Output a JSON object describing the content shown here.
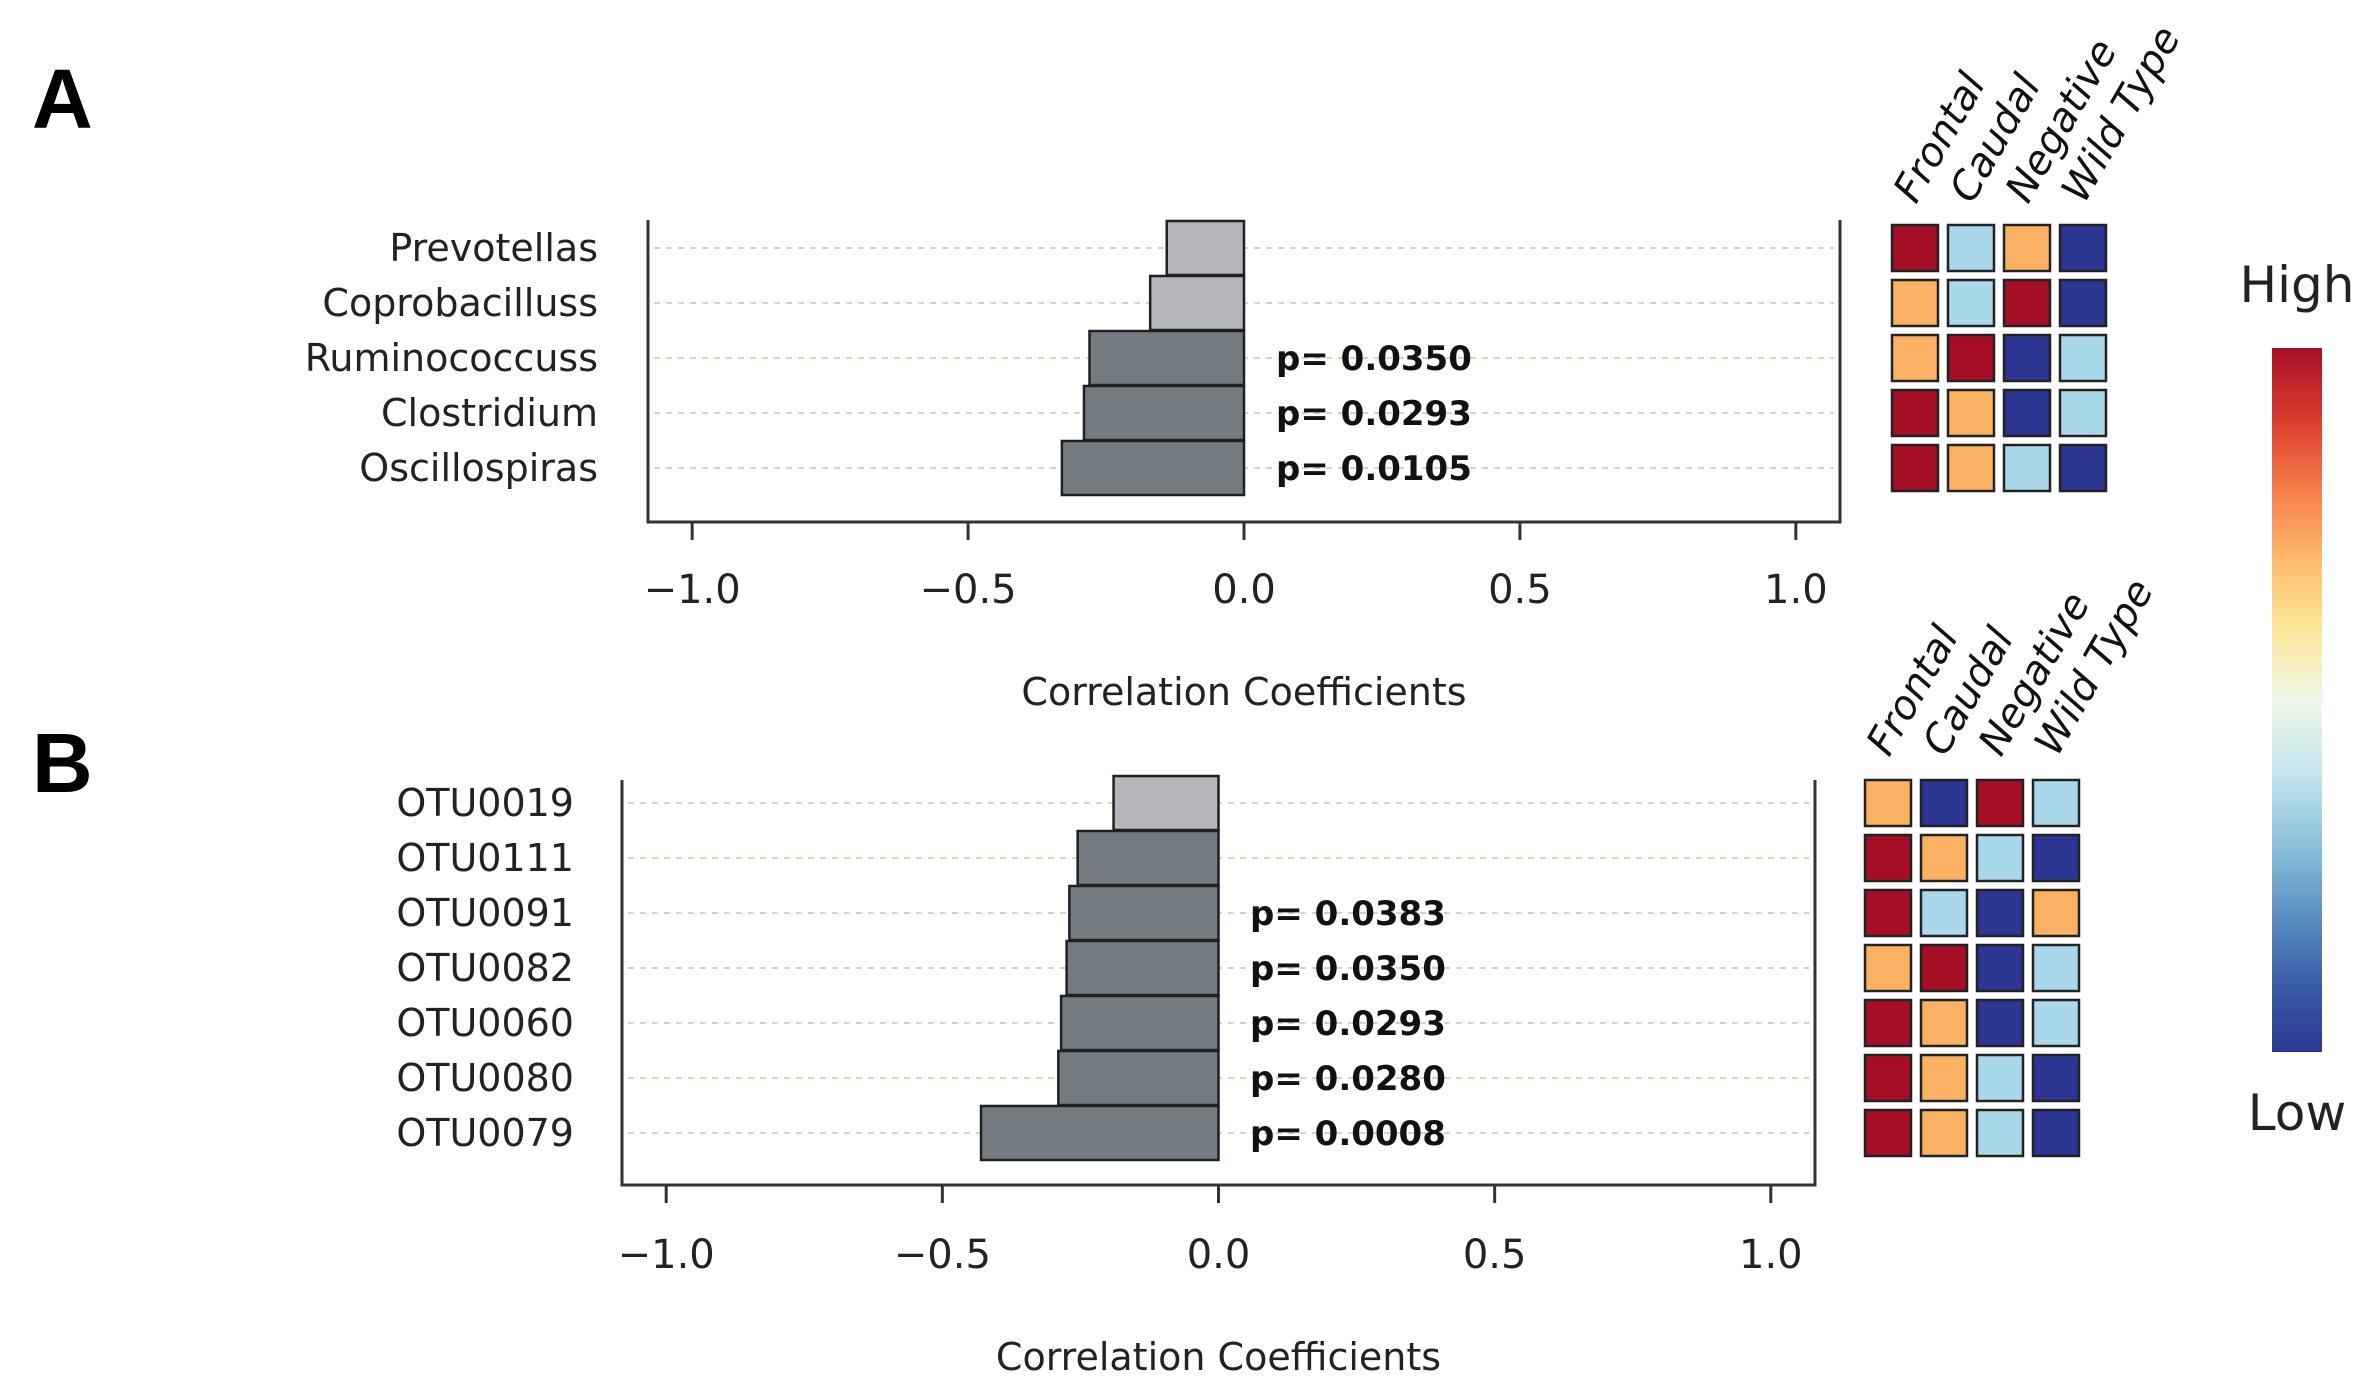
{
  "legend": {
    "high_label": "High",
    "low_label": "Low",
    "gradient": [
      "#2c3691",
      "#3c5ea8",
      "#5d94c4",
      "#8fc3dc",
      "#c7e6f0",
      "#eef8e6",
      "#fde79a",
      "#fdba6c",
      "#f67c4a",
      "#da3b2e",
      "#a50f26"
    ]
  },
  "heat_colors": {
    "high": "#a50f26",
    "mid_high": "#fbb163",
    "mid_low": "#a8d8ea",
    "low": "#2c3592"
  },
  "chart_data": [
    {
      "panel_label": "A",
      "type": "bar",
      "orientation": "horizontal",
      "categories": [
        "Prevotellas",
        "Coprobacilluss",
        "Ruminococcuss",
        "Clostridium",
        "Oscillospiras"
      ],
      "values": [
        -0.14,
        -0.17,
        -0.28,
        -0.29,
        -0.33
      ],
      "significant": [
        false,
        false,
        true,
        true,
        true
      ],
      "p_values": [
        "",
        "",
        "p= 0.0350",
        "p= 0.0293",
        "p= 0.0105"
      ],
      "xlabel": "Correlation Coefficients",
      "xlim": [
        -1.08,
        1.08
      ],
      "xticks": [
        -1.0,
        -0.5,
        0.0,
        0.5,
        1.0
      ],
      "xtick_labels": [
        "−1.0",
        "−0.5",
        "0.0",
        "0.5",
        "1.0"
      ],
      "heatmap_columns": [
        "Frontal",
        "Caudal",
        "Negative",
        "Wild Type"
      ],
      "heatmap": [
        [
          "high",
          "mid_low",
          "mid_high",
          "low"
        ],
        [
          "mid_high",
          "mid_low",
          "high",
          "low"
        ],
        [
          "mid_high",
          "high",
          "low",
          "mid_low"
        ],
        [
          "high",
          "mid_high",
          "low",
          "mid_low"
        ],
        [
          "high",
          "mid_high",
          "mid_low",
          "low"
        ]
      ]
    },
    {
      "panel_label": "B",
      "type": "bar",
      "orientation": "horizontal",
      "categories": [
        "OTU0019",
        "OTU0111",
        "OTU0091",
        "OTU0082",
        "OTU0060",
        "OTU0080",
        "OTU0079"
      ],
      "values": [
        -0.19,
        -0.255,
        -0.27,
        -0.275,
        -0.285,
        -0.29,
        -0.43
      ],
      "significant": [
        false,
        true,
        true,
        true,
        true,
        true,
        true
      ],
      "p_values": [
        "",
        "",
        "p= 0.0383",
        "p= 0.0350",
        "p= 0.0293",
        "p= 0.0280",
        "p= 0.0008"
      ],
      "xlabel": "Correlation Coefficients",
      "xlim": [
        -1.08,
        1.08
      ],
      "xticks": [
        -1.0,
        -0.5,
        0.0,
        0.5,
        1.0
      ],
      "xtick_labels": [
        "−1.0",
        "−0.5",
        "0.0",
        "0.5",
        "1.0"
      ],
      "heatmap_columns": [
        "Frontal",
        "Caudal",
        "Negative",
        "Wild Type"
      ],
      "heatmap": [
        [
          "mid_high",
          "low",
          "high",
          "mid_low"
        ],
        [
          "high",
          "mid_high",
          "mid_low",
          "low"
        ],
        [
          "high",
          "mid_low",
          "low",
          "mid_high"
        ],
        [
          "mid_high",
          "high",
          "low",
          "mid_low"
        ],
        [
          "high",
          "mid_high",
          "low",
          "mid_low"
        ],
        [
          "high",
          "mid_high",
          "mid_low",
          "low"
        ],
        [
          "high",
          "mid_high",
          "mid_low",
          "low"
        ]
      ]
    }
  ]
}
